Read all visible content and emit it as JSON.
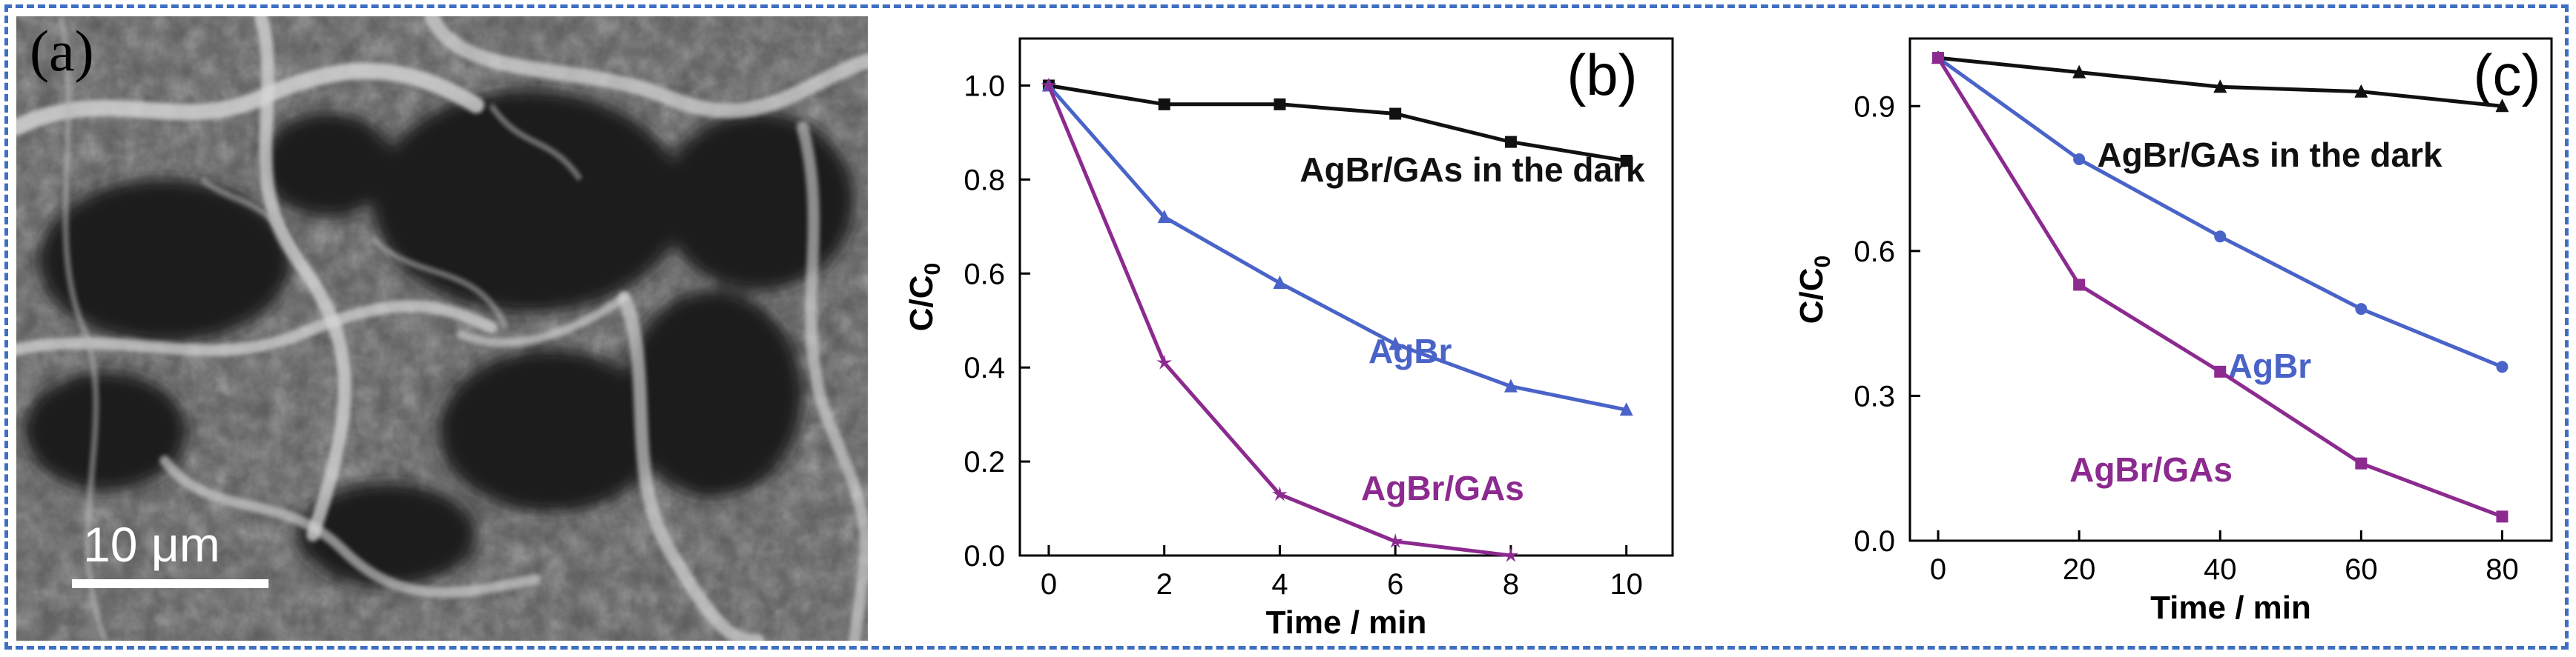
{
  "panels": {
    "a": {
      "label": "(a)",
      "scale_bar": "10 μm"
    }
  },
  "chart_data": [
    {
      "type": "line",
      "panel_label": "(b)",
      "xlabel": "Time / min",
      "ylabel_main": "C/C",
      "ylabel_sub": "0",
      "xlim": [
        -0.5,
        10.8
      ],
      "ylim": [
        0.0,
        1.1
      ],
      "xticks": [
        0,
        2,
        4,
        6,
        8,
        10
      ],
      "xtick_labels": [
        "0",
        "2",
        "4",
        "6",
        "8",
        "10"
      ],
      "yticks": [
        0.0,
        0.2,
        0.4,
        0.6,
        0.8,
        1.0
      ],
      "ytick_labels": [
        "0.0",
        "0.2",
        "0.4",
        "0.6",
        "0.8",
        "1.0"
      ],
      "series": [
        {
          "name": "AgBr/GAs in the dark",
          "color": "#111111",
          "marker": "square",
          "x": [
            0,
            2,
            4,
            6,
            8,
            10
          ],
          "y": [
            1.0,
            0.96,
            0.96,
            0.94,
            0.88,
            0.84
          ]
        },
        {
          "name": "AgBr",
          "color": "#4a63c8",
          "marker": "triangle",
          "x": [
            0,
            2,
            4,
            6,
            8,
            10
          ],
          "y": [
            1.0,
            0.72,
            0.58,
            0.45,
            0.36,
            0.31
          ]
        },
        {
          "name": "AgBr/GAs",
          "color": "#8c2a8f",
          "marker": "star",
          "x": [
            0,
            2,
            4,
            6,
            8
          ],
          "y": [
            1.0,
            0.41,
            0.13,
            0.03,
            0.0
          ]
        }
      ]
    },
    {
      "type": "line",
      "panel_label": "(c)",
      "xlabel": "Time / min",
      "ylabel_main": "C/C",
      "ylabel_sub": "0",
      "xlim": [
        -4,
        87
      ],
      "ylim": [
        0.0,
        1.04
      ],
      "xticks": [
        0,
        20,
        40,
        60,
        80
      ],
      "xtick_labels": [
        "0",
        "20",
        "40",
        "60",
        "80"
      ],
      "yticks": [
        0.0,
        0.3,
        0.6,
        0.9
      ],
      "ytick_labels": [
        "0.0",
        "0.3",
        "0.6",
        "0.9"
      ],
      "series": [
        {
          "name": "AgBr/GAs in the dark",
          "color": "#111111",
          "marker": "triangle",
          "x": [
            0,
            20,
            40,
            60,
            80
          ],
          "y": [
            1.0,
            0.97,
            0.94,
            0.93,
            0.9
          ]
        },
        {
          "name": "AgBr",
          "color": "#4a63c8",
          "marker": "circle",
          "x": [
            0,
            20,
            40,
            60,
            80
          ],
          "y": [
            1.0,
            0.79,
            0.63,
            0.48,
            0.36
          ]
        },
        {
          "name": "AgBr/GAs",
          "color": "#8c2a8f",
          "marker": "square",
          "x": [
            0,
            20,
            40,
            60,
            80
          ],
          "y": [
            1.0,
            0.53,
            0.35,
            0.16,
            0.05
          ]
        }
      ]
    }
  ]
}
